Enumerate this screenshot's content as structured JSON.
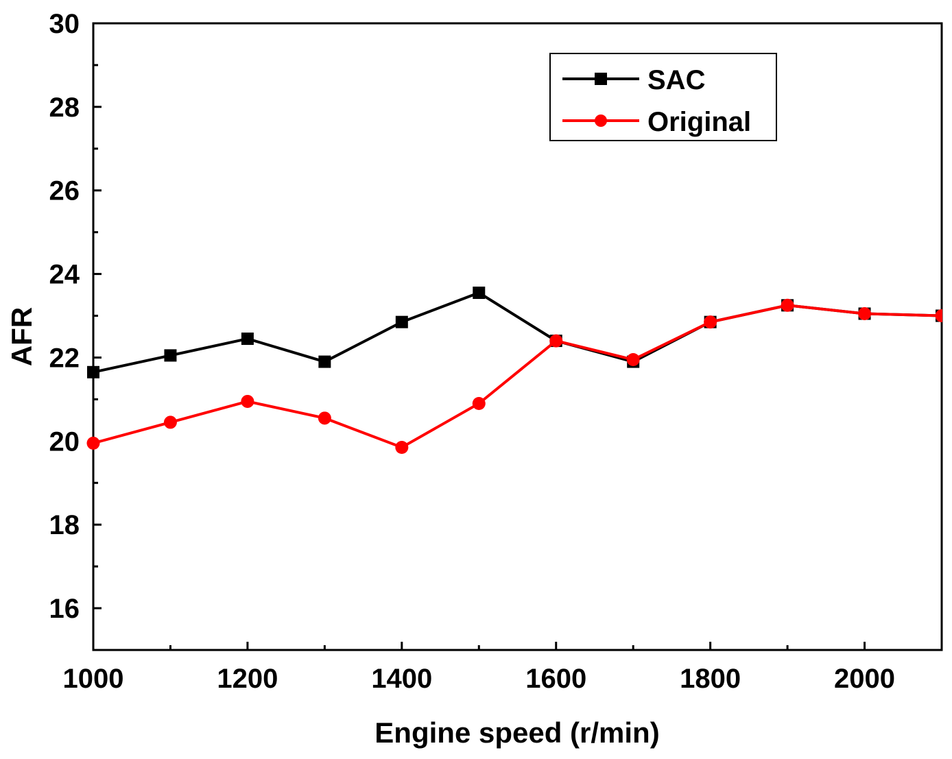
{
  "chart_data": {
    "type": "line",
    "title": "",
    "xlabel": "Engine speed (r/min)",
    "ylabel": "AFR",
    "xlim": [
      1000,
      2100
    ],
    "ylim": [
      15,
      30
    ],
    "x_ticks": [
      1000,
      1200,
      1400,
      1600,
      1800,
      2000
    ],
    "y_ticks": [
      16,
      18,
      20,
      22,
      24,
      26,
      28,
      30
    ],
    "grid": false,
    "legend_position": "top-right",
    "series": [
      {
        "name": "SAC",
        "color": "#000000",
        "marker": "square",
        "x": [
          1000,
          1100,
          1200,
          1300,
          1400,
          1500,
          1600,
          1700,
          1800,
          1900,
          2000,
          2100
        ],
        "y": [
          21.65,
          22.05,
          22.45,
          21.9,
          22.85,
          23.55,
          22.4,
          21.9,
          22.85,
          23.25,
          23.05,
          23.0
        ]
      },
      {
        "name": "Original",
        "color": "#ff0000",
        "marker": "circle",
        "x": [
          1000,
          1100,
          1200,
          1300,
          1400,
          1500,
          1600,
          1700,
          1800,
          1900,
          2000,
          2100
        ],
        "y": [
          19.95,
          20.45,
          20.95,
          20.55,
          19.85,
          20.9,
          22.4,
          21.95,
          22.85,
          23.25,
          23.05,
          23.0
        ]
      }
    ]
  }
}
